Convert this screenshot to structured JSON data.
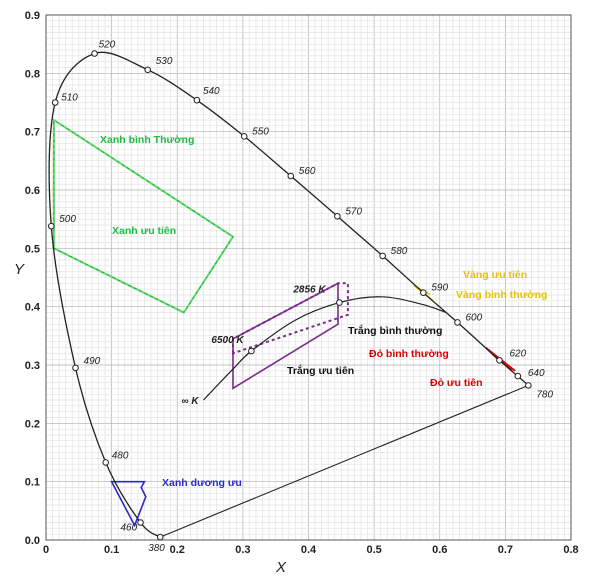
{
  "chart_data": {
    "type": "scatter",
    "title": "",
    "xlabel": "X",
    "ylabel": "Y",
    "xlim": [
      0,
      0.8
    ],
    "ylim": [
      0,
      0.9
    ],
    "x_ticks": [
      "0",
      "0.1",
      "0.2",
      "0.3",
      "0.4",
      "0.5",
      "0.6",
      "0.7",
      "0.8"
    ],
    "y_ticks": [
      "0.0",
      "0.1",
      "0.2",
      "0.3",
      "0.4",
      "0.5",
      "0.6",
      "0.7",
      "0.8",
      "0.9"
    ],
    "grid": true,
    "spectral_locus": [
      {
        "wl": "380",
        "x": 0.174,
        "y": 0.005
      },
      {
        "wl": "460",
        "x": 0.144,
        "y": 0.03
      },
      {
        "wl": "480",
        "x": 0.091,
        "y": 0.133
      },
      {
        "wl": "490",
        "x": 0.045,
        "y": 0.295
      },
      {
        "wl": "500",
        "x": 0.008,
        "y": 0.538
      },
      {
        "wl": "510",
        "x": 0.014,
        "y": 0.75
      },
      {
        "wl": "520",
        "x": 0.074,
        "y": 0.834
      },
      {
        "wl": "530",
        "x": 0.155,
        "y": 0.806
      },
      {
        "wl": "540",
        "x": 0.23,
        "y": 0.754
      },
      {
        "wl": "550",
        "x": 0.302,
        "y": 0.692
      },
      {
        "wl": "560",
        "x": 0.373,
        "y": 0.624
      },
      {
        "wl": "570",
        "x": 0.444,
        "y": 0.555
      },
      {
        "wl": "580",
        "x": 0.513,
        "y": 0.487
      },
      {
        "wl": "590",
        "x": 0.575,
        "y": 0.424
      },
      {
        "wl": "600",
        "x": 0.627,
        "y": 0.373
      },
      {
        "wl": "620",
        "x": 0.691,
        "y": 0.308
      },
      {
        "wl": "640",
        "x": 0.719,
        "y": 0.281
      },
      {
        "wl": "780",
        "x": 0.735,
        "y": 0.265
      }
    ],
    "planckian_locus": {
      "points": [
        [
          0.24,
          0.24
        ],
        [
          0.285,
          0.293
        ],
        [
          0.313,
          0.324
        ],
        [
          0.38,
          0.377
        ],
        [
          0.447,
          0.407
        ],
        [
          0.51,
          0.417
        ],
        [
          0.57,
          0.405
        ],
        [
          0.61,
          0.39
        ]
      ],
      "labels": [
        {
          "text": "6500 K",
          "x": 0.313,
          "y": 0.324
        },
        {
          "text": "2856 K",
          "x": 0.447,
          "y": 0.407
        },
        {
          "text": "∞ K",
          "x": 0.24,
          "y": 0.24
        }
      ]
    },
    "regions": [
      {
        "name": "Xanh bình Thường",
        "color": "#22bb44",
        "polygon": [
          [
            0.012,
            0.72
          ],
          [
            0.285,
            0.52
          ],
          [
            0.21,
            0.39
          ],
          [
            0.012,
            0.5
          ]
        ]
      },
      {
        "name": "Xanh ưu tiên",
        "color": "#66dd66",
        "polygon": [
          [
            0.012,
            0.72
          ],
          [
            0.285,
            0.52
          ],
          [
            0.21,
            0.39
          ],
          [
            0.012,
            0.5
          ]
        ]
      },
      {
        "name": "Vàng ưu tiên",
        "color": "#e6c200",
        "polygon": [
          [
            0.566,
            0.433
          ],
          [
            0.585,
            0.421
          ]
        ]
      },
      {
        "name": "Vàng bình thường",
        "color": "#e6c200",
        "polygon": [
          [
            0.56,
            0.437
          ],
          [
            0.59,
            0.41
          ]
        ]
      },
      {
        "name": "Trắng bình thường",
        "color": "#7a2a8a",
        "polygon": [
          [
            0.285,
            0.32
          ],
          [
            0.285,
            0.345
          ],
          [
            0.445,
            0.44
          ],
          [
            0.46,
            0.44
          ],
          [
            0.46,
            0.386
          ]
        ]
      },
      {
        "name": "Trắng ưu tiên",
        "color": "#7a2a8a",
        "polygon": [
          [
            0.285,
            0.26
          ],
          [
            0.285,
            0.345
          ],
          [
            0.445,
            0.44
          ],
          [
            0.445,
            0.37
          ]
        ]
      },
      {
        "name": "Đỏ bình thường",
        "color": "#dd0000",
        "polygon": [
          [
            0.67,
            0.33
          ],
          [
            0.69,
            0.308
          ],
          [
            0.715,
            0.29
          ]
        ]
      },
      {
        "name": "Đỏ ưu tiên",
        "color": "#dd0000",
        "polygon": [
          [
            0.69,
            0.31
          ],
          [
            0.71,
            0.29
          ]
        ]
      },
      {
        "name": "Xanh dương ưu",
        "color": "#2a2acc",
        "polygon": [
          [
            0.1,
            0.1
          ],
          [
            0.15,
            0.1
          ],
          [
            0.145,
            0.09
          ],
          [
            0.152,
            0.074
          ],
          [
            0.135,
            0.025
          ]
        ]
      }
    ]
  }
}
